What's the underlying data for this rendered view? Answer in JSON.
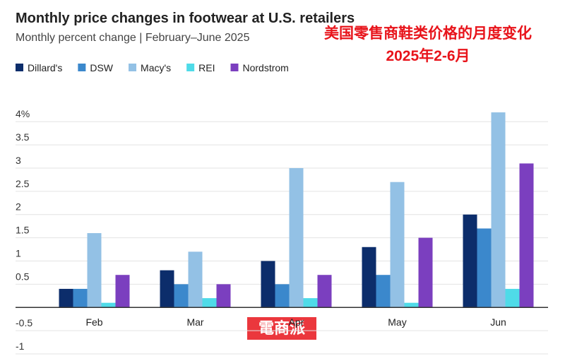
{
  "chart_data": {
    "type": "bar",
    "title": "Monthly price changes in footwear at U.S. retailers",
    "subtitle": "Monthly percent change | February–June 2025",
    "annotations": [
      "美国零售商鞋类价格的月度变化",
      "2025年2-6月",
      "電商派"
    ],
    "categories": [
      "Feb",
      "Mar",
      "Apr",
      "May",
      "Jun"
    ],
    "series": [
      {
        "name": "Dillard's",
        "color": "#0c2d6b",
        "values": [
          0.4,
          0.8,
          1.0,
          1.3,
          2.0
        ]
      },
      {
        "name": "DSW",
        "color": "#3b88cc",
        "values": [
          0.4,
          0.5,
          0.5,
          0.7,
          1.7
        ]
      },
      {
        "name": "Macy's",
        "color": "#93c1e5",
        "values": [
          1.6,
          1.2,
          3.0,
          2.7,
          4.2
        ]
      },
      {
        "name": "REI",
        "color": "#4fdbe8",
        "values": [
          0.1,
          0.2,
          0.2,
          0.1,
          0.4
        ]
      },
      {
        "name": "Nordstrom",
        "color": "#7b3fbf",
        "values": [
          0.7,
          0.5,
          0.7,
          1.5,
          3.1
        ]
      }
    ],
    "ylim": [
      -1,
      4.3
    ],
    "yticks": [
      -1,
      -0.5,
      0.5,
      1,
      1.5,
      2,
      2.5,
      3,
      3.5,
      {
        "value": 4,
        "label": "4%"
      }
    ],
    "grid": true
  }
}
